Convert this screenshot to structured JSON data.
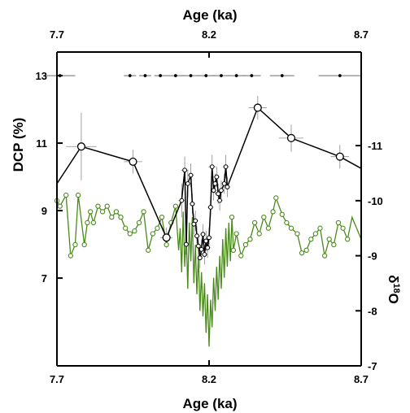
{
  "chart_data": {
    "type": "scatter",
    "x_axis": {
      "label": "Age (ka)",
      "range": [
        7.7,
        8.7
      ],
      "ticks": [
        "7.7",
        "8.2",
        "8.7"
      ]
    },
    "top_axis": {
      "label": "Age (ka)",
      "range": [
        7.7,
        8.7
      ],
      "ticks": [
        "7.7",
        "8.2",
        "8.7"
      ]
    },
    "left_axis": {
      "label": "DCP (%)",
      "range": [
        4.4,
        13.7
      ],
      "ticks": [
        "13",
        "11",
        "9",
        "7"
      ]
    },
    "right_axis": {
      "label": "δ18O",
      "range": [
        -12.7,
        -7.0
      ],
      "inverted": true,
      "ticks": [
        "-11",
        "-10",
        "-9",
        "-8",
        "-7"
      ]
    },
    "colors": {
      "dcp": "#000000",
      "d18o": "#4a8a1a",
      "axes": "#000000"
    },
    "series": [
      {
        "key": "dcp",
        "axis": "left",
        "points": [
          [
            7.7,
            9.8,
            null,
            null
          ],
          [
            7.78,
            10.9,
            0.05,
            1.0
          ],
          [
            7.95,
            10.45,
            0.03,
            0.35
          ],
          [
            8.06,
            8.2,
            0.02,
            0.3
          ],
          [
            8.11,
            9.3,
            0.01,
            0.5
          ],
          [
            8.12,
            10.2,
            0.012,
            0.4
          ],
          [
            8.125,
            8.0,
            0.01,
            0.3
          ],
          [
            8.13,
            9.8,
            0.01,
            0.4
          ],
          [
            8.14,
            10.05,
            0.01,
            0.35
          ],
          [
            8.145,
            9.2,
            0.01,
            0.3
          ],
          [
            8.15,
            8.6,
            0.01,
            0.3
          ],
          [
            8.155,
            8.7,
            0.01,
            0.3
          ],
          [
            8.16,
            8.25,
            0.01,
            0.3
          ],
          [
            8.165,
            7.95,
            0.01,
            0.3
          ],
          [
            8.17,
            7.6,
            0.01,
            0.3
          ],
          [
            8.175,
            7.85,
            0.01,
            0.3
          ],
          [
            8.18,
            8.3,
            0.01,
            0.3
          ],
          [
            8.185,
            7.7,
            0.01,
            0.3
          ],
          [
            8.19,
            8.1,
            0.01,
            0.3
          ],
          [
            8.195,
            7.9,
            0.01,
            0.3
          ],
          [
            8.2,
            8.2,
            0.01,
            0.3
          ],
          [
            8.205,
            9.1,
            0.01,
            0.3
          ],
          [
            8.21,
            10.3,
            0.012,
            0.35
          ],
          [
            8.215,
            9.6,
            0.01,
            0.3
          ],
          [
            8.22,
            9.8,
            0.01,
            0.3
          ],
          [
            8.225,
            10.0,
            0.01,
            0.3
          ],
          [
            8.23,
            9.5,
            0.01,
            0.3
          ],
          [
            8.235,
            9.3,
            0.01,
            0.3
          ],
          [
            8.24,
            9.6,
            0.01,
            0.3
          ],
          [
            8.25,
            9.8,
            0.01,
            0.3
          ],
          [
            8.255,
            10.3,
            0.01,
            0.35
          ],
          [
            8.26,
            9.7,
            0.01,
            0.3
          ],
          [
            8.36,
            12.05,
            0.03,
            0.35
          ],
          [
            8.47,
            11.15,
            0.04,
            0.4
          ],
          [
            8.63,
            10.6,
            0.03,
            0.35
          ],
          [
            8.7,
            10.25,
            null,
            null
          ]
        ]
      },
      {
        "key": "d18o",
        "axis": "right",
        "points": [
          [
            7.7,
            -10.0
          ],
          [
            7.71,
            -9.9
          ],
          [
            7.73,
            -10.1
          ],
          [
            7.745,
            -9.0
          ],
          [
            7.76,
            -9.2
          ],
          [
            7.77,
            -10.1
          ],
          [
            7.79,
            -9.2
          ],
          [
            7.8,
            -9.6
          ],
          [
            7.81,
            -9.8
          ],
          [
            7.82,
            -9.6
          ],
          [
            7.835,
            -9.9
          ],
          [
            7.85,
            -9.8
          ],
          [
            7.865,
            -9.9
          ],
          [
            7.88,
            -9.7
          ],
          [
            7.895,
            -9.8
          ],
          [
            7.91,
            -9.7
          ],
          [
            7.925,
            -9.5
          ],
          [
            7.94,
            -9.4
          ],
          [
            7.955,
            -9.45
          ],
          [
            7.97,
            -9.6
          ],
          [
            7.985,
            -9.8
          ],
          [
            8.0,
            -9.1
          ],
          [
            8.015,
            -9.4
          ],
          [
            8.03,
            -9.5
          ],
          [
            8.045,
            -9.7
          ],
          [
            8.06,
            -9.2
          ],
          [
            8.075,
            -9.6
          ],
          [
            8.09,
            -9.9
          ],
          [
            8.1,
            -9.1
          ],
          [
            8.105,
            -9.5
          ],
          [
            8.11,
            -8.7
          ],
          [
            8.115,
            -9.8
          ],
          [
            8.12,
            -8.8
          ],
          [
            8.125,
            -9.4
          ],
          [
            8.13,
            -8.4
          ],
          [
            8.135,
            -9.6
          ],
          [
            8.14,
            -8.9
          ],
          [
            8.145,
            -9.7
          ],
          [
            8.15,
            -8.5
          ],
          [
            8.155,
            -9.2
          ],
          [
            8.16,
            -8.3
          ],
          [
            8.165,
            -9.0
          ],
          [
            8.17,
            -8.0
          ],
          [
            8.175,
            -8.7
          ],
          [
            8.18,
            -7.9
          ],
          [
            8.185,
            -8.5
          ],
          [
            8.19,
            -7.6
          ],
          [
            8.195,
            -8.3
          ],
          [
            8.2,
            -7.35
          ],
          [
            8.205,
            -8.2
          ],
          [
            8.21,
            -7.7
          ],
          [
            8.215,
            -8.6
          ],
          [
            8.22,
            -8.0
          ],
          [
            8.225,
            -8.8
          ],
          [
            8.23,
            -8.2
          ],
          [
            8.235,
            -9.0
          ],
          [
            8.24,
            -8.4
          ],
          [
            8.245,
            -9.3
          ],
          [
            8.25,
            -8.6
          ],
          [
            8.255,
            -9.5
          ],
          [
            8.26,
            -8.8
          ],
          [
            8.265,
            -9.6
          ],
          [
            8.27,
            -8.9
          ],
          [
            8.275,
            -9.7
          ],
          [
            8.28,
            -9.1
          ],
          [
            8.29,
            -9.4
          ],
          [
            8.305,
            -9.0
          ],
          [
            8.32,
            -9.2
          ],
          [
            8.335,
            -9.3
          ],
          [
            8.35,
            -9.6
          ],
          [
            8.365,
            -9.4
          ],
          [
            8.38,
            -9.7
          ],
          [
            8.395,
            -9.5
          ],
          [
            8.41,
            -9.8
          ],
          [
            8.42,
            -10.05
          ],
          [
            8.44,
            -9.75
          ],
          [
            8.455,
            -9.6
          ],
          [
            8.47,
            -9.5
          ],
          [
            8.49,
            -9.4
          ],
          [
            8.505,
            -9.05
          ],
          [
            8.52,
            -9.1
          ],
          [
            8.535,
            -9.3
          ],
          [
            8.55,
            -9.4
          ],
          [
            8.565,
            -9.5
          ],
          [
            8.58,
            -9.0
          ],
          [
            8.595,
            -9.3
          ],
          [
            8.61,
            -9.2
          ],
          [
            8.625,
            -9.6
          ],
          [
            8.64,
            -9.5
          ],
          [
            8.655,
            -9.3
          ],
          [
            8.67,
            -9.7
          ],
          [
            8.685,
            -9.5
          ],
          [
            8.7,
            -9.3
          ]
        ],
        "marker_indices": [
          0,
          1,
          2,
          3,
          4,
          5,
          6,
          7,
          8,
          9,
          10,
          11,
          12,
          13,
          14,
          15,
          16,
          17,
          18,
          19,
          20,
          21,
          22,
          23,
          24,
          25,
          26,
          27,
          63,
          64,
          65,
          66,
          67,
          68,
          69,
          70,
          71,
          72,
          73,
          74,
          75,
          76,
          77,
          78,
          79,
          80,
          81,
          82,
          83,
          84,
          85,
          86,
          87,
          88,
          89
        ]
      },
      {
        "key": "dates",
        "axis": "left",
        "y": 13.0,
        "points": [
          [
            7.71,
            0.05
          ],
          [
            7.94,
            0.02
          ],
          [
            7.99,
            0.02
          ],
          [
            8.04,
            0.02
          ],
          [
            8.09,
            0.03
          ],
          [
            8.14,
            0.03
          ],
          [
            8.19,
            0.03
          ],
          [
            8.24,
            0.03
          ],
          [
            8.29,
            0.03
          ],
          [
            8.34,
            0.03
          ],
          [
            8.44,
            0.04
          ],
          [
            8.63,
            0.07
          ]
        ]
      }
    ]
  }
}
